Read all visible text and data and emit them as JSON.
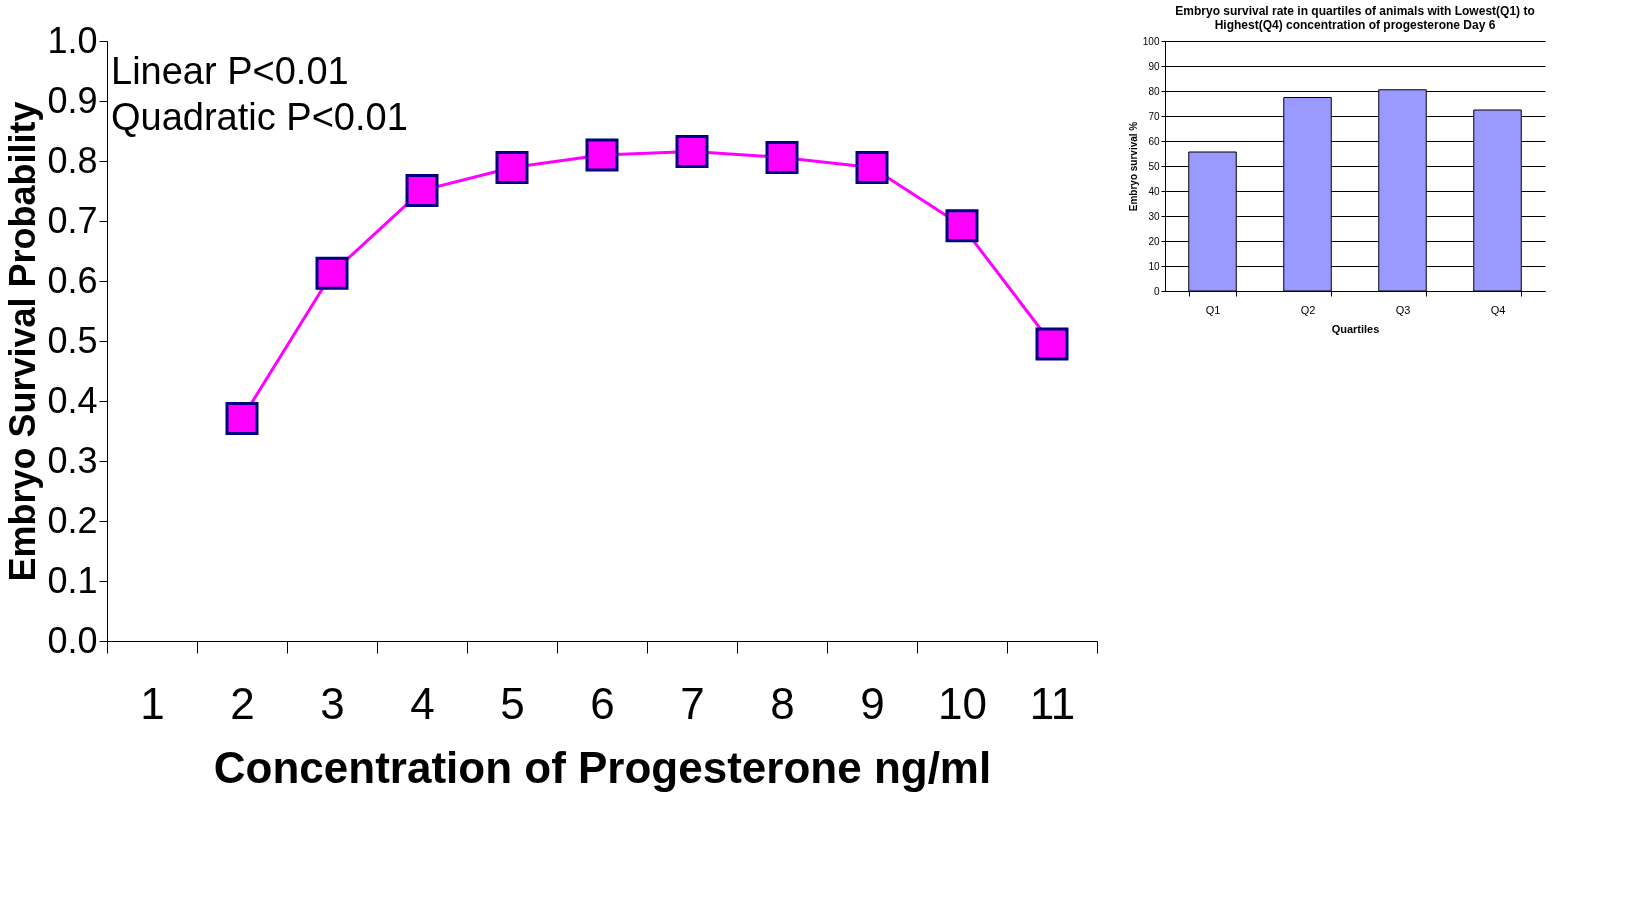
{
  "chart_data": [
    {
      "type": "line",
      "xlabel": "Concentration of Progesterone ng/ml",
      "ylabel": "Embryo Survival Probability",
      "categories": [
        "1",
        "2",
        "3",
        "4",
        "5",
        "6",
        "7",
        "8",
        "9",
        "10",
        "11"
      ],
      "series": [
        {
          "color": "#ff00ff",
          "values": [
            null,
            0.371,
            0.613,
            0.751,
            0.789,
            0.81,
            0.816,
            0.806,
            0.789,
            0.692,
            0.495
          ]
        }
      ],
      "ylim": [
        0,
        1
      ],
      "yticks": [
        "0.0",
        0.1,
        0.2,
        0.3,
        0.4,
        0.5,
        0.6,
        0.7,
        0.8,
        0.9,
        "1.0"
      ],
      "marker": "square",
      "grid": false,
      "legend": false,
      "annotations": [
        "Linear P<0.01",
        "Quadratic P<0.01"
      ]
    },
    {
      "type": "bar",
      "title": "Embryo survival rate in quartiles of animals with Lowest(Q1) to Highest(Q4) concentration of progesterone Day 6",
      "xlabel": "Quartiles",
      "ylabel": "Embryo survival %",
      "categories": [
        "Q1",
        "Q2",
        "Q3",
        "Q4"
      ],
      "series": [
        {
          "color": "#9999ff",
          "values": [
            55.6,
            77.4,
            80.5,
            72.4
          ]
        }
      ],
      "ylim": [
        0,
        100
      ],
      "yticks": [
        0,
        10,
        20,
        30,
        40,
        50,
        60,
        70,
        80,
        90,
        100
      ],
      "grid": "y",
      "legend": false
    }
  ]
}
